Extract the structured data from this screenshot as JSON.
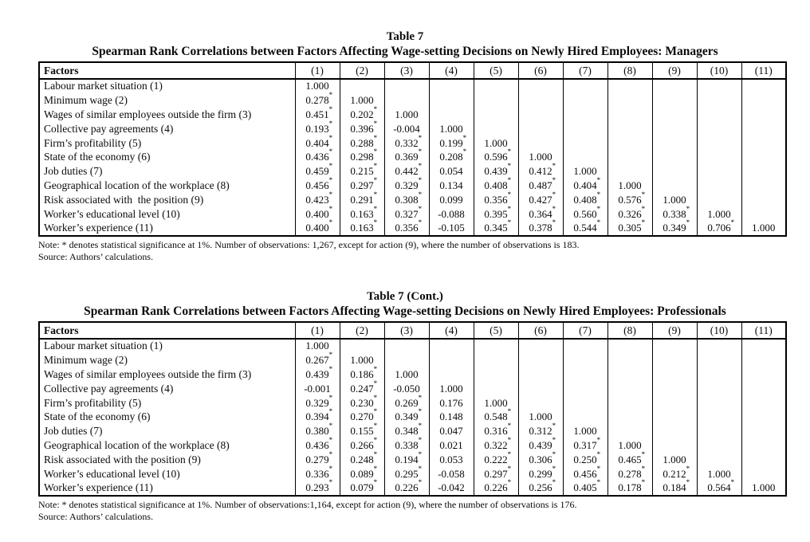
{
  "tables": [
    {
      "title": "Table 7",
      "subtitle": "Spearman Rank Correlations between Factors Affecting Wage-setting Decisions on Newly Hired Employees: Managers",
      "header": {
        "factors_label": "Factors",
        "columns": [
          "(1)",
          "(2)",
          "(3)",
          "(4)",
          "(5)",
          "(6)",
          "(7)",
          "(8)",
          "(9)",
          "(10)",
          "(11)"
        ]
      },
      "rows": [
        {
          "label": "Labour market situation (1)",
          "values": [
            "1.000",
            "",
            "",
            "",
            "",
            "",
            "",
            "",
            "",
            "",
            ""
          ]
        },
        {
          "label": "Minimum wage (2)",
          "values": [
            "0.278*",
            "1.000",
            "",
            "",
            "",
            "",
            "",
            "",
            "",
            "",
            ""
          ]
        },
        {
          "label": "Wages of similar employees outside the firm (3)",
          "values": [
            "0.451*",
            "0.202*",
            "1.000",
            "",
            "",
            "",
            "",
            "",
            "",
            "",
            ""
          ]
        },
        {
          "label": "Collective pay agreements (4)",
          "values": [
            "0.193*",
            "0.396*",
            "-0.004",
            "1.000",
            "",
            "",
            "",
            "",
            "",
            "",
            ""
          ]
        },
        {
          "label": "Firm’s profitability (5)",
          "values": [
            "0.404*",
            "0.288*",
            "0.332*",
            "0.199*",
            "1.000",
            "",
            "",
            "",
            "",
            "",
            ""
          ]
        },
        {
          "label": "State of the economy (6)",
          "values": [
            "0.436*",
            "0.298*",
            "0.369*",
            "0.208*",
            "0.596*",
            "1.000",
            "",
            "",
            "",
            "",
            ""
          ]
        },
        {
          "label": "Job duties (7)",
          "values": [
            "0.459*",
            "0.215*",
            "0.442*",
            "0.054",
            "0.439*",
            "0.412*",
            "1.000",
            "",
            "",
            "",
            ""
          ]
        },
        {
          "label": "Geographical location of the workplace (8)",
          "values": [
            "0.456*",
            "0.297*",
            "0.329*",
            "0.134",
            "0.408*",
            "0.487*",
            "0.404*",
            "1.000",
            "",
            "",
            ""
          ]
        },
        {
          "label": "Risk associated with  the position (9)",
          "values": [
            "0.423*",
            "0.291*",
            "0.308*",
            "0.099",
            "0.356*",
            "0.427*",
            "0.408*",
            "0.576*",
            "1.000",
            "",
            ""
          ]
        },
        {
          "label": "Worker’s educational level (10)",
          "values": [
            "0.400*",
            "0.163*",
            "0.327*",
            "-0.088",
            "0.395*",
            "0.364*",
            "0.560*",
            "0.326*",
            "0.338*",
            "1.000",
            ""
          ]
        },
        {
          "label": "Worker’s experience (11)",
          "values": [
            "0.400*",
            "0.163*",
            "0.356*",
            "-0.105",
            "0.345*",
            "0.378*",
            "0.544*",
            "0.305*",
            "0.349*",
            "0.706*",
            "1.000"
          ]
        }
      ],
      "note": "Note: * denotes statistical significance at 1%. Number of observations: 1,267, except for action (9), where the number of observations is 183.",
      "source": "Source: Authors’ calculations."
    },
    {
      "title": "Table 7 (Cont.)",
      "subtitle": "Spearman Rank Correlations between Factors Affecting Wage-setting Decisions on Newly Hired Employees: Professionals",
      "header": {
        "factors_label": "Factors",
        "columns": [
          "(1)",
          "(2)",
          "(3)",
          "(4)",
          "(5)",
          "(6)",
          "(7)",
          "(8)",
          "(9)",
          "(10)",
          "(11)"
        ]
      },
      "rows": [
        {
          "label": "Labour market situation (1)",
          "values": [
            "1.000",
            "",
            "",
            "",
            "",
            "",
            "",
            "",
            "",
            "",
            ""
          ]
        },
        {
          "label": "Minimum wage (2)",
          "values": [
            "0.267*",
            "1.000",
            "",
            "",
            "",
            "",
            "",
            "",
            "",
            "",
            ""
          ]
        },
        {
          "label": "Wages of similar employees outside the firm (3)",
          "values": [
            "0.439*",
            "0.186*",
            "1.000",
            "",
            "",
            "",
            "",
            "",
            "",
            "",
            ""
          ]
        },
        {
          "label": "Collective pay agreements (4)",
          "values": [
            "-0.001",
            "0.247*",
            "-0.050",
            "1.000",
            "",
            "",
            "",
            "",
            "",
            "",
            ""
          ]
        },
        {
          "label": "Firm’s profitability (5)",
          "values": [
            "0.329*",
            "0.230*",
            "0.269*",
            "0.176",
            "1.000",
            "",
            "",
            "",
            "",
            "",
            ""
          ]
        },
        {
          "label": "State of the economy (6)",
          "values": [
            "0.394*",
            "0.270*",
            "0.349*",
            "0.148",
            "0.548*",
            "1.000",
            "",
            "",
            "",
            "",
            ""
          ]
        },
        {
          "label": "Job duties (7)",
          "values": [
            "0.380*",
            "0.155*",
            "0.348*",
            "0.047",
            "0.316*",
            "0.312*",
            "1.000",
            "",
            "",
            "",
            ""
          ]
        },
        {
          "label": "Geographical location of the workplace (8)",
          "values": [
            "0.436*",
            "0.266*",
            "0.338*",
            "0.021",
            "0.322*",
            "0.439*",
            "0.317*",
            "1.000",
            "",
            "",
            ""
          ]
        },
        {
          "label": "Risk associated with the position (9)",
          "values": [
            "0.279*",
            "0.248*",
            "0.194*",
            "0.053",
            "0.222*",
            "0.306*",
            "0.250*",
            "0.465*",
            "1.000",
            "",
            ""
          ]
        },
        {
          "label": "Worker’s educational level (10)",
          "values": [
            "0.336*",
            "0.089*",
            "0.295*",
            "-0.058",
            "0.297*",
            "0.299*",
            "0.456*",
            "0.278*",
            "0.212*",
            "1.000",
            ""
          ]
        },
        {
          "label": "Worker’s experience (11)",
          "values": [
            "0.293*",
            "0.079*",
            "0.226*",
            "-0.042",
            "0.226*",
            "0.256*",
            "0.405*",
            "0.178*",
            "0.184*",
            "0.564*",
            "1.000"
          ]
        }
      ],
      "note": "Note: * denotes statistical significance at 1%. Number of observations:1,164, except for action (9), where the number of observations is 176.",
      "source": "Source: Authors’ calculations."
    }
  ]
}
